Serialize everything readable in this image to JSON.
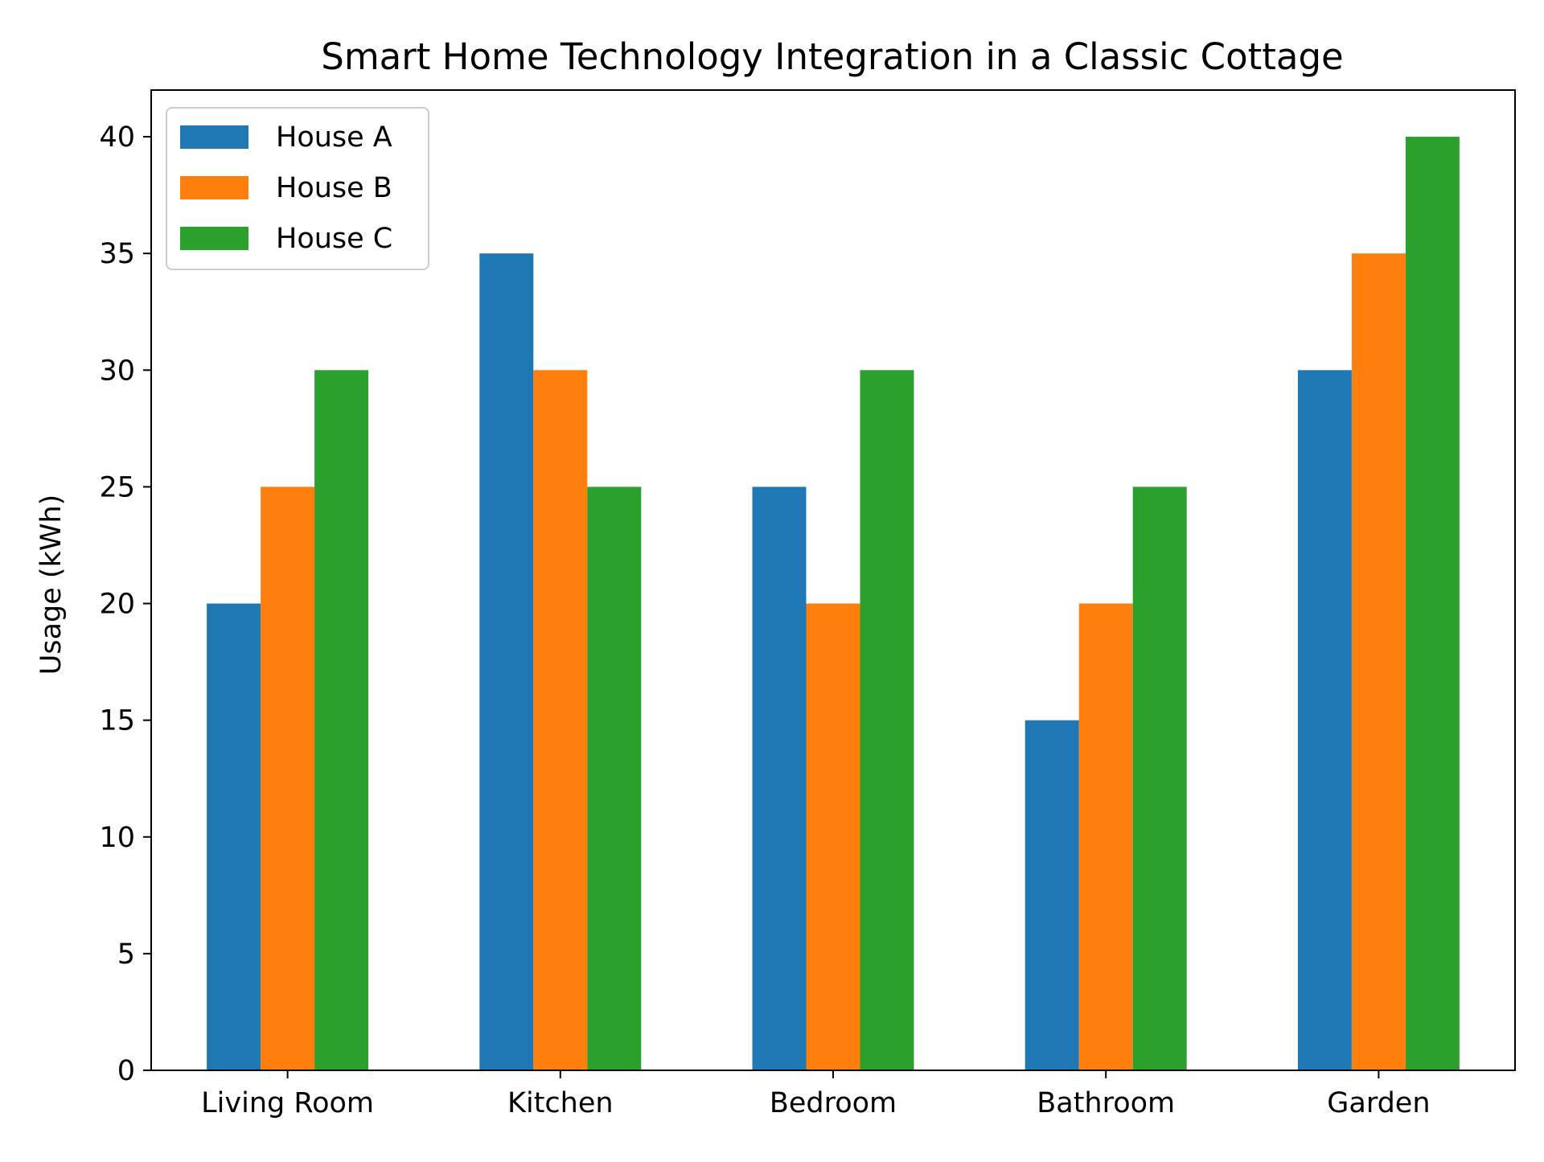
{
  "chart_data": {
    "type": "bar",
    "title": "Smart Home Technology Integration in a Classic Cottage",
    "xlabel": "",
    "ylabel": "Usage (kWh)",
    "categories": [
      "Living Room",
      "Kitchen",
      "Bedroom",
      "Bathroom",
      "Garden"
    ],
    "series": [
      {
        "name": "House A",
        "color": "#1f77b4",
        "values": [
          20,
          35,
          25,
          15,
          30
        ]
      },
      {
        "name": "House B",
        "color": "#ff7f0e",
        "values": [
          25,
          30,
          20,
          20,
          35
        ]
      },
      {
        "name": "House C",
        "color": "#2ca02c",
        "values": [
          30,
          25,
          30,
          25,
          40
        ]
      }
    ],
    "ylim": [
      0,
      42
    ],
    "yticks": [
      0,
      5,
      10,
      15,
      20,
      25,
      30,
      35,
      40
    ],
    "grid": false,
    "legend_position": "top-left"
  }
}
